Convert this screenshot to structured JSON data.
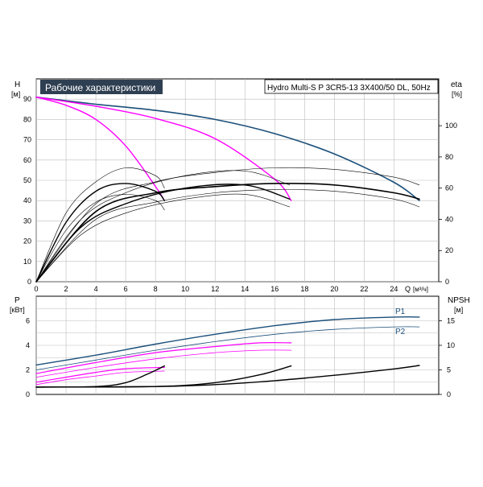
{
  "header": {
    "title": "Рабочие характеристики",
    "model": "Hydro Multi-S P 3CR5-13 3X400/50 DL, 50Hz",
    "colors": {
      "title_bg": "#2f3f52",
      "title_fg": "#ffffff"
    }
  },
  "chart_data": [
    {
      "type": "line",
      "ylabel": "H",
      "yunit": "[м]",
      "y2label": "eta",
      "y2unit": "[%]",
      "xlabel": "Q",
      "xunit": "[м³/ч]",
      "xlim": [
        0,
        27
      ],
      "ylim": [
        0,
        100
      ],
      "y2lim": [
        0,
        130
      ],
      "xticks": [
        0,
        2,
        4,
        6,
        8,
        10,
        12,
        14,
        16,
        18,
        20,
        22,
        24
      ],
      "yticks": [
        0,
        10,
        20,
        30,
        40,
        50,
        60,
        70,
        80,
        90
      ],
      "y2ticks": [
        0,
        20,
        40,
        60,
        80,
        100
      ],
      "grid": true,
      "series": [
        {
          "axis": "y",
          "color": "#1b4f7a",
          "width": 1.6,
          "points": [
            [
              0,
              91
            ],
            [
              4,
              87.5
            ],
            [
              8,
              84.5
            ],
            [
              12,
              80
            ],
            [
              16,
              73
            ],
            [
              20,
              63
            ],
            [
              24,
              49
            ],
            [
              25.7,
              40
            ]
          ]
        },
        {
          "axis": "y",
          "color": "#ff00ff",
          "width": 1.4,
          "points": [
            [
              0,
              91
            ],
            [
              4,
              86.5
            ],
            [
              8,
              80.5
            ],
            [
              12,
              70.5
            ],
            [
              16,
              50.5
            ],
            [
              17.1,
              40
            ]
          ]
        },
        {
          "axis": "y",
          "color": "#ff00ff",
          "width": 1.4,
          "points": [
            [
              0,
              91
            ],
            [
              2,
              87
            ],
            [
              4,
              80
            ],
            [
              6,
              67
            ],
            [
              8,
              47
            ],
            [
              8.6,
              40
            ]
          ]
        },
        {
          "axis": "y2",
          "color": "#000000",
          "width": 1.6,
          "points": [
            [
              0,
              0
            ],
            [
              4,
              45
            ],
            [
              8,
              57
            ],
            [
              12,
              61
            ],
            [
              16,
              63
            ],
            [
              20,
              62
            ],
            [
              24,
              57
            ],
            [
              25.7,
              53
            ]
          ]
        },
        {
          "axis": "y2",
          "color": "#000000",
          "width": 1.4,
          "points": [
            [
              0,
              0
            ],
            [
              3,
              35
            ],
            [
              6,
              50
            ],
            [
              10,
              60
            ],
            [
              14,
              62
            ],
            [
              17,
              53
            ]
          ]
        },
        {
          "axis": "y2",
          "color": "#000000",
          "width": 1.4,
          "points": [
            [
              0,
              0
            ],
            [
              2,
              38
            ],
            [
              4,
              58
            ],
            [
              6,
              63
            ],
            [
              8,
              58
            ],
            [
              8.6,
              52
            ]
          ]
        },
        {
          "axis": "y2",
          "color": "#000000",
          "width": 0.6,
          "points": [
            [
              0,
              0
            ],
            [
              4,
              50
            ],
            [
              8,
              64
            ],
            [
              12,
              70
            ],
            [
              16,
              73
            ],
            [
              20,
              72
            ],
            [
              24,
              67
            ],
            [
              25.7,
              62
            ]
          ]
        },
        {
          "axis": "y2",
          "color": "#000000",
          "width": 0.6,
          "points": [
            [
              0,
              0
            ],
            [
              3,
              40
            ],
            [
              6,
              57
            ],
            [
              10,
              68
            ],
            [
              14,
              71
            ],
            [
              17,
              62
            ]
          ]
        },
        {
          "axis": "y2",
          "color": "#000000",
          "width": 0.6,
          "points": [
            [
              0,
              0
            ],
            [
              2,
              44
            ],
            [
              4,
              64
            ],
            [
              6,
              73
            ],
            [
              8,
              68
            ],
            [
              8.6,
              60
            ]
          ]
        },
        {
          "axis": "y2",
          "color": "#000000",
          "width": 0.6,
          "points": [
            [
              0,
              0
            ],
            [
              4,
              40
            ],
            [
              8,
              51
            ],
            [
              12,
              57
            ],
            [
              16,
              59
            ],
            [
              20,
              58
            ],
            [
              24,
              53
            ],
            [
              25.7,
              48
            ]
          ]
        },
        {
          "axis": "y2",
          "color": "#000000",
          "width": 0.6,
          "points": [
            [
              0,
              0
            ],
            [
              3,
              30
            ],
            [
              6,
              44
            ],
            [
              10,
              53
            ],
            [
              14,
              56
            ],
            [
              17,
              48
            ]
          ]
        },
        {
          "axis": "y2",
          "color": "#000000",
          "width": 0.6,
          "points": [
            [
              0,
              0
            ],
            [
              2,
              33
            ],
            [
              4,
              51
            ],
            [
              6,
              56
            ],
            [
              8,
              52
            ],
            [
              8.6,
              46
            ]
          ]
        }
      ]
    },
    {
      "type": "line",
      "ylabel": "P",
      "yunit": "[кВт]",
      "y2label": "NPSH",
      "y2unit": "[м]",
      "xlim": [
        0,
        27
      ],
      "ylim": [
        0,
        8
      ],
      "y2lim": [
        0,
        20
      ],
      "yticks": [
        0,
        2,
        4,
        6
      ],
      "y2ticks": [
        0,
        5,
        10,
        15
      ],
      "grid": true,
      "series_labels": [
        "P1",
        "P2"
      ],
      "series": [
        {
          "axis": "y",
          "color": "#1b4f7a",
          "width": 1.4,
          "points": [
            [
              0,
              2.4
            ],
            [
              4,
              3.2
            ],
            [
              8,
              4.1
            ],
            [
              12,
              4.9
            ],
            [
              16,
              5.6
            ],
            [
              20,
              6.1
            ],
            [
              24,
              6.3
            ],
            [
              25.7,
              6.3
            ]
          ]
        },
        {
          "axis": "y",
          "color": "#1b4f7a",
          "width": 0.8,
          "points": [
            [
              0,
              2.0
            ],
            [
              4,
              2.8
            ],
            [
              8,
              3.6
            ],
            [
              12,
              4.3
            ],
            [
              16,
              4.9
            ],
            [
              20,
              5.3
            ],
            [
              24,
              5.5
            ],
            [
              25.7,
              5.5
            ]
          ]
        },
        {
          "axis": "y",
          "color": "#ff00ff",
          "width": 1.2,
          "points": [
            [
              0,
              1.7
            ],
            [
              4,
              2.6
            ],
            [
              8,
              3.4
            ],
            [
              12,
              3.9
            ],
            [
              15,
              4.2
            ],
            [
              17.1,
              4.2
            ]
          ]
        },
        {
          "axis": "y",
          "color": "#ff00ff",
          "width": 0.8,
          "points": [
            [
              0,
              1.4
            ],
            [
              4,
              2.2
            ],
            [
              8,
              2.9
            ],
            [
              12,
              3.4
            ],
            [
              15,
              3.6
            ],
            [
              17.1,
              3.6
            ]
          ]
        },
        {
          "axis": "y",
          "color": "#ff00ff",
          "width": 1.2,
          "points": [
            [
              0,
              1.0
            ],
            [
              2,
              1.4
            ],
            [
              4,
              1.8
            ],
            [
              6,
              2.1
            ],
            [
              8.6,
              2.2
            ]
          ]
        },
        {
          "axis": "y",
          "color": "#ff00ff",
          "width": 0.8,
          "points": [
            [
              0,
              0.8
            ],
            [
              2,
              1.2
            ],
            [
              4,
              1.5
            ],
            [
              6,
              1.8
            ],
            [
              8.6,
              1.9
            ]
          ]
        },
        {
          "axis": "y2",
          "color": "#000000",
          "width": 1.4,
          "points": [
            [
              0,
              1.5
            ],
            [
              8,
              1.6
            ],
            [
              12,
              2.0
            ],
            [
              16,
              2.8
            ],
            [
              20,
              3.9
            ],
            [
              24,
              5.2
            ],
            [
              25.7,
              5.9
            ]
          ]
        },
        {
          "axis": "y2",
          "color": "#000000",
          "width": 1.4,
          "points": [
            [
              0,
              1.5
            ],
            [
              8,
              1.6
            ],
            [
              12,
              2.4
            ],
            [
              15,
              4.0
            ],
            [
              17.1,
              5.8
            ]
          ]
        },
        {
          "axis": "y2",
          "color": "#000000",
          "width": 1.4,
          "points": [
            [
              0,
              1.5
            ],
            [
              4,
              1.6
            ],
            [
              6,
              2.4
            ],
            [
              7.5,
              4.2
            ],
            [
              8.6,
              5.8
            ]
          ]
        }
      ]
    }
  ]
}
